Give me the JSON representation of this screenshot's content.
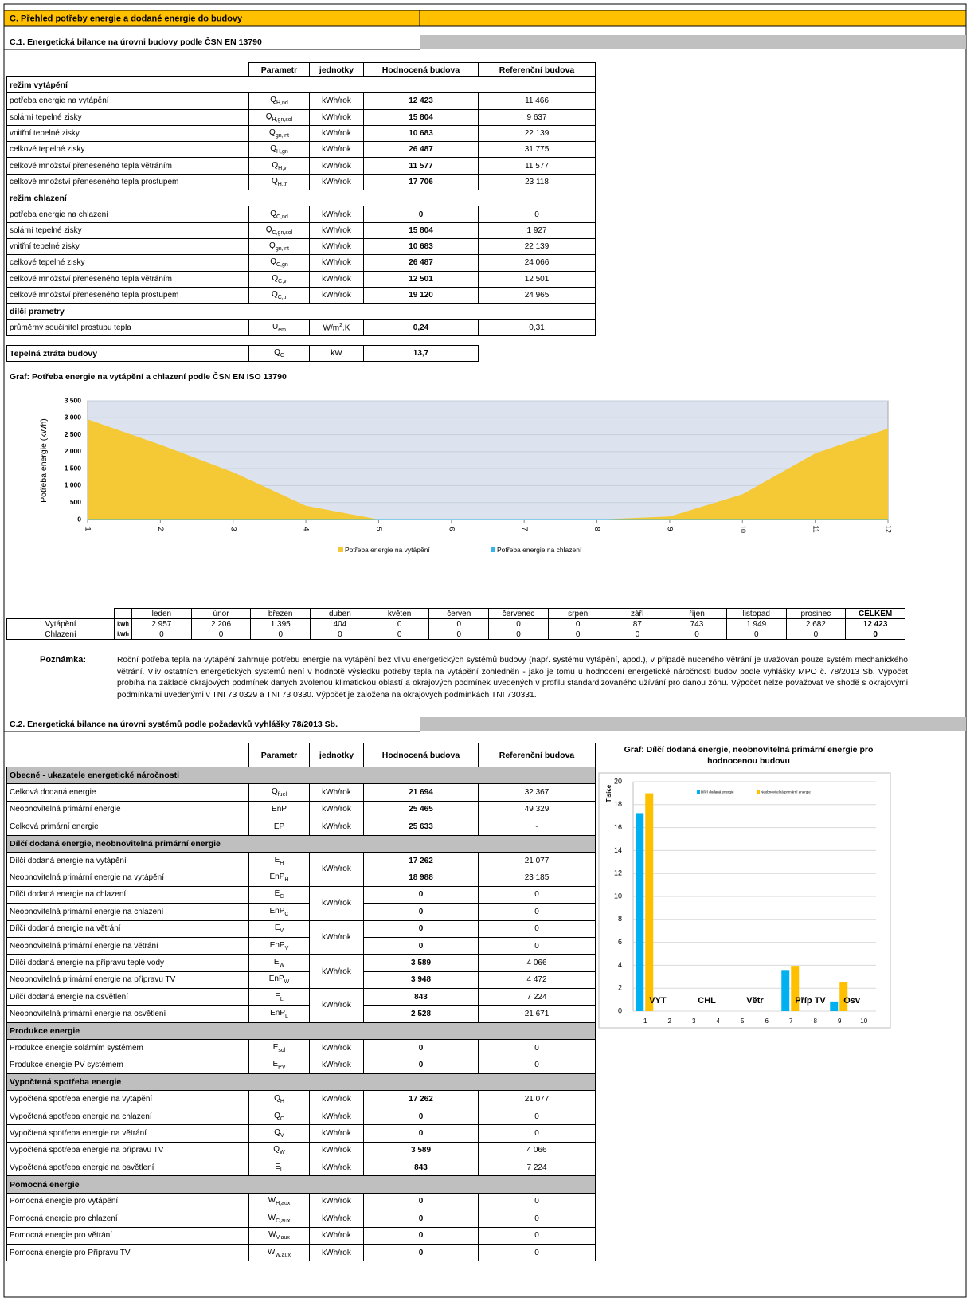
{
  "header": {
    "title": "C. Přehled potřeby energie a dodané energie do budovy"
  },
  "section_c1": {
    "title": "C.1. Energetická bilance na úrovni budovy podle ČSN EN 13790",
    "table": {
      "columns": [
        "Parametr",
        "jednotky",
        "Hodnocená budova",
        "Referenční budova"
      ],
      "groups": [
        {
          "name": "režim vytápění",
          "rows": [
            {
              "label": "potřeba energie na vytápění",
              "symbol": "Q",
              "sub": "H,nd",
              "unit": "kWh/rok",
              "value": "12 423",
              "ref": "11 466"
            },
            {
              "label": "solární tepelné zisky",
              "symbol": "Q",
              "sub": "H,gn,sol",
              "unit": "kWh/rok",
              "value": "15 804",
              "ref": "9 637"
            },
            {
              "label": "vnitřní tepelné zisky",
              "symbol": "Q",
              "sub": "gn,int",
              "unit": "kWh/rok",
              "value": "10 683",
              "ref": "22 139"
            },
            {
              "label": "celkové tepelné zisky",
              "symbol": "Q",
              "sub": "H,gn",
              "unit": "kWh/rok",
              "value": "26 487",
              "ref": "31 775"
            },
            {
              "label": "celkové množství přeneseného tepla větráním",
              "symbol": "Q",
              "sub": "H,v",
              "unit": "kWh/rok",
              "value": "11 577",
              "ref": "11 577"
            },
            {
              "label": "celkové množství přeneseného tepla prostupem",
              "symbol": "Q",
              "sub": "H,tr",
              "unit": "kWh/rok",
              "value": "17 706",
              "ref": "23 118"
            }
          ]
        },
        {
          "name": "režim chlazení",
          "rows": [
            {
              "label": "potřeba energie na chlazení",
              "symbol": "Q",
              "sub": "C,nd",
              "unit": "kWh/rok",
              "value": "0",
              "ref": "0"
            },
            {
              "label": "solární tepelné zisky",
              "symbol": "Q",
              "sub": "C,gn,sol",
              "unit": "kWh/rok",
              "value": "15 804",
              "ref": "1 927"
            },
            {
              "label": "vnitřní tepelné zisky",
              "symbol": "Q",
              "sub": "gn,int",
              "unit": "kWh/rok",
              "value": "10 683",
              "ref": "22 139"
            },
            {
              "label": "celkové tepelné zisky",
              "symbol": "Q",
              "sub": "C,gn",
              "unit": "kWh/rok",
              "value": "26 487",
              "ref": "24 066"
            },
            {
              "label": "celkové množství přeneseného tepla větráním",
              "symbol": "Q",
              "sub": "C,v",
              "unit": "kWh/rok",
              "value": "12 501",
              "ref": "12 501"
            },
            {
              "label": "celkové množství přeneseného tepla prostupem",
              "symbol": "Q",
              "sub": "C,tr",
              "unit": "kWh/rok",
              "value": "19 120",
              "ref": "24 965"
            }
          ]
        },
        {
          "name": "dílčí prametry",
          "rows": [
            {
              "label": "průměrný součinitel prostupu tepla",
              "symbol": "U",
              "sub": "em",
              "unit": "W/m",
              "unit_sup": "2",
              "unit_tail": ".K",
              "value": "0,24",
              "ref": "0,31"
            }
          ]
        }
      ]
    },
    "heat_loss": {
      "label": "Tepelná ztráta budovy",
      "symbol": "Q",
      "sub": "C",
      "unit": "kW",
      "value": "13,7"
    }
  },
  "monthly_table": {
    "months": [
      "leden",
      "únor",
      "březen",
      "duben",
      "květen",
      "červen",
      "červenec",
      "srpen",
      "září",
      "říjen",
      "listopad",
      "prosinec"
    ],
    "total_header": "CELKEM",
    "rows": [
      {
        "name": "Vytápění",
        "unit": "kWh",
        "values": [
          "2 957",
          "2 206",
          "1 395",
          "404",
          "0",
          "0",
          "0",
          "0",
          "87",
          "743",
          "1 949",
          "2 682"
        ],
        "total": "12 423"
      },
      {
        "name": "Chlazení",
        "unit": "kWh",
        "values": [
          "0",
          "0",
          "0",
          "0",
          "0",
          "0",
          "0",
          "0",
          "0",
          "0",
          "0",
          "0"
        ],
        "total": "0"
      }
    ]
  },
  "note": {
    "label": "Poznámka:",
    "text": "Roční potřeba tepla na vytápění zahrnuje potřebu energie na vytápění bez vlivu energetických systémů budovy (např. systému vytápění, apod.), v případě nuceného větrání je uvažován pouze systém mechanického větrání. Vliv ostatních energetických systémů není v hodnotě výsledku potřeby tepla na vytápění zohledněn - jako je tomu u hodnocení energetické náročnosti budov podle vyhlášky MPO č. 78/2013 Sb. Výpočet probíhá na základě okrajových podmínek daných zvolenou klimatickou oblastí a okrajových podmínek uvedených v profilu standardizovaného užívání pro danou zónu. Výpočet nelze považovat ve shodě s okrajovými podmínkami uvedenými v TNI 73 0329 a TNI 73 0330. Výpočet je založena na okrajových podmínkách TNI 730331."
  },
  "section_c2": {
    "title": "C.2. Energetická bilance na úrovni systémů podle požadavků vyhlášky 78/2013 Sb.",
    "table": {
      "columns": [
        "Parametr",
        "jednotky",
        "Hodnocená budova",
        "Referenční budova"
      ],
      "groups": [
        {
          "name": "Obecně - ukazatele energetické náročnosti",
          "rows": [
            {
              "label": "Celková dodaná energie",
              "symbol": "Q",
              "sub": "fuel",
              "unit": "kWh/rok",
              "value": "21 694",
              "ref": "32 367"
            },
            {
              "label": "Neobnovitelná primární energie",
              "symbol": "EnP",
              "unit": "kWh/rok",
              "value": "25 465",
              "ref": "49 329"
            },
            {
              "label": "Celková primární energie",
              "symbol": "EP",
              "unit": "kWh/rok",
              "value": "25 633",
              "ref": "-"
            }
          ]
        },
        {
          "name": "Dílčí dodaná energie, neobnovitelná primární energie",
          "rows": [
            {
              "unit": "kWh/rok",
              "pair": [
                {
                  "label": "Dílčí dodaná energie na vytápění",
                  "symbol": "E",
                  "sub": "H",
                  "value": "17 262",
                  "ref": "21 077"
                },
                {
                  "label": "Neobnovitelná primární energie na vytápění",
                  "symbol": "EnP",
                  "sub": "H",
                  "value": "18 988",
                  "ref": "23 185"
                }
              ]
            },
            {
              "unit": "kWh/rok",
              "pair": [
                {
                  "label": "Dílčí dodaná energie na chlazení",
                  "symbol": "E",
                  "sub": "C",
                  "value": "0",
                  "ref": "0"
                },
                {
                  "label": "Neobnovitelná primární energie na chlazení",
                  "symbol": "EnP",
                  "sub": "C",
                  "value": "0",
                  "ref": "0"
                }
              ]
            },
            {
              "unit": "kWh/rok",
              "pair": [
                {
                  "label": "Dílčí dodaná energie na větrání",
                  "symbol": "E",
                  "sub": "V",
                  "value": "0",
                  "ref": "0"
                },
                {
                  "label": "Neobnovitelná primární energie na větrání",
                  "symbol": "EnP",
                  "sub": "V",
                  "value": "0",
                  "ref": "0"
                }
              ]
            },
            {
              "unit": "kWh/rok",
              "pair": [
                {
                  "label": "Dílčí dodaná energie na přípravu teplé vody",
                  "symbol": "E",
                  "sub": "W",
                  "value": "3 589",
                  "ref": "4 066"
                },
                {
                  "label": "Neobnovitelná primární energie na přípravu TV",
                  "symbol": "EnP",
                  "sub": "W",
                  "value": "3 948",
                  "ref": "4 472"
                }
              ]
            },
            {
              "unit": "kWh/rok",
              "pair": [
                {
                  "label": "Dílčí dodaná energie na osvětlení",
                  "symbol": "E",
                  "sub": "L",
                  "value": "843",
                  "ref": "7 224"
                },
                {
                  "label": "Neobnovitelná primární energie na osvětlení",
                  "symbol": "EnP",
                  "sub": "L",
                  "value": "2 528",
                  "ref": "21 671"
                }
              ]
            }
          ]
        },
        {
          "name": "Produkce energie",
          "rows": [
            {
              "label": "Produkce energie solárním systémem",
              "symbol": "E",
              "sub": "sol",
              "unit": "kWh/rok",
              "value": "0",
              "ref": "0"
            },
            {
              "label": "Produkce energie PV systémem",
              "symbol": "E",
              "sub": "PV",
              "unit": "kWh/rok",
              "value": "0",
              "ref": "0"
            }
          ]
        },
        {
          "name": "Vypočtená spotřeba energie",
          "rows": [
            {
              "label": "Vypočtená spotřeba energie na vytápění",
              "symbol": "Q",
              "sub": "H",
              "unit": "kWh/rok",
              "value": "17 262",
              "ref": "21 077"
            },
            {
              "label": "Vypočtená spotřeba energie na chlazení",
              "symbol": "Q",
              "sub": "C",
              "unit": "kWh/rok",
              "value": "0",
              "ref": "0"
            },
            {
              "label": "Vypočtená spotřeba energie na větrání",
              "symbol": "Q",
              "sub": "V",
              "unit": "kWh/rok",
              "value": "0",
              "ref": "0"
            },
            {
              "label": "Vypočtená spotřeba energie na přípravu TV",
              "symbol": "Q",
              "sub": "W",
              "unit": "kWh/rok",
              "value": "3 589",
              "ref": "4 066"
            },
            {
              "label": "Vypočtená spotřeba energie na osvětlení",
              "symbol": "E",
              "sub": "L",
              "unit": "kWh/rok",
              "value": "843",
              "ref": "7 224"
            }
          ]
        },
        {
          "name": "Pomocná energie",
          "rows": [
            {
              "label": "Pomocná energie pro vytápění",
              "symbol": "W",
              "sub": "H,aux",
              "unit": "kWh/rok",
              "value": "0",
              "ref": "0"
            },
            {
              "label": "Pomocná energie pro chlazení",
              "symbol": "W",
              "sub": "C,aux",
              "unit": "kWh/rok",
              "value": "0",
              "ref": "0"
            },
            {
              "label": "Pomocná energie pro větrání",
              "symbol": "W",
              "sub": "V,aux",
              "unit": "kWh/rok",
              "value": "0",
              "ref": "0"
            },
            {
              "label": "Pomocná energie pro Přípravu TV",
              "symbol": "W",
              "sub": "W,aux",
              "unit": "kWh/rok",
              "value": "0",
              "ref": "0"
            }
          ]
        }
      ]
    }
  },
  "chart_data": [
    {
      "type": "area",
      "title": "Graf: Potřeba energie na vytápění a chlazení podle ČSN EN ISO 13790",
      "y_label": "Potřeba energie (kWh)",
      "x": [
        1,
        2,
        3,
        4,
        5,
        6,
        7,
        8,
        9,
        10,
        11,
        12
      ],
      "xlim": [
        1,
        12
      ],
      "xticks": [
        1,
        2,
        3,
        4,
        5,
        6,
        7,
        8,
        9,
        10,
        11,
        12
      ],
      "ylim": [
        0,
        3500
      ],
      "yticks": [
        0,
        500,
        {
          "value": 1000,
          "label": "1 000"
        },
        {
          "value": 1500,
          "label": "1 500"
        },
        {
          "value": 2000,
          "label": "2 000"
        },
        {
          "value": 2500,
          "label": "2 500"
        },
        {
          "value": 3000,
          "label": "3 000"
        },
        {
          "value": 3500,
          "label": "3 500"
        }
      ],
      "grid": true,
      "legend": "bottom",
      "series": [
        {
          "name": "Potřeba energie na vytápění",
          "color": "#f4c935",
          "values": [
            2957,
            2206,
            1395,
            404,
            0,
            0,
            0,
            0,
            87,
            743,
            1949,
            2682
          ]
        },
        {
          "name": "Potřeba energie na chlazení",
          "color": "#33b5e5",
          "values": [
            0,
            0,
            0,
            0,
            0,
            0,
            0,
            0,
            0,
            0,
            0,
            0
          ]
        }
      ]
    },
    {
      "type": "bar",
      "title": "Graf: Dílčí dodaná energie, neobnovitelná primární energie pro hodnocenou budovu",
      "y_label": "Tisíce",
      "categories": [
        1,
        2,
        3,
        4,
        5,
        6,
        7,
        8,
        9,
        10
      ],
      "ylim": [
        0,
        20
      ],
      "yticks": [
        0,
        2,
        4,
        6,
        8,
        10,
        12,
        14,
        16,
        18,
        20
      ],
      "grid": true,
      "legend": "top",
      "annotations": [
        "VYT",
        "CHL",
        "Větr",
        "Příp TV",
        "Osv"
      ],
      "series": [
        {
          "name": "Dílčí dodaná energie",
          "color": "#00b0f0",
          "values": [
            17.262,
            0,
            0,
            0,
            0,
            0,
            3.589,
            0,
            0.843,
            0
          ]
        },
        {
          "name": "Neobnovitelná primární energie",
          "color": "#ffc000",
          "values": [
            18.988,
            0,
            0,
            0,
            0,
            0,
            3.948,
            0,
            2.528,
            0
          ]
        }
      ]
    }
  ]
}
